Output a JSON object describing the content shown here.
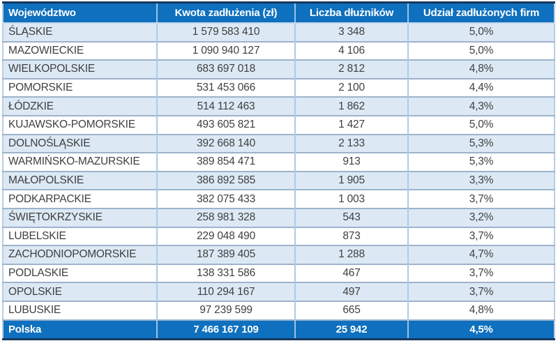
{
  "chart_data": {
    "type": "table",
    "columns": [
      "Województwo",
      "Kwota zadłużenia (zł)",
      "Liczba dłużników",
      "Udział zadłużonych firm"
    ],
    "rows": [
      [
        "ŚLĄSKIE",
        "1 579 583 410",
        "3 348",
        "5,0%"
      ],
      [
        "MAZOWIECKIE",
        "1 090 940 127",
        "4 106",
        "5,0%"
      ],
      [
        "WIELKOPOLSKIE",
        "683 697 018",
        "2 812",
        "4,8%"
      ],
      [
        "POMORSKIE",
        "531 453 066",
        "2 100",
        "4,4%"
      ],
      [
        "ŁÓDZKIE",
        "514 112 463",
        "1 862",
        "4,3%"
      ],
      [
        "KUJAWSKO-POMORSKIE",
        "493 605 821",
        "1 427",
        "5,0%"
      ],
      [
        "DOLNOŚLĄSKIE",
        "392 668 140",
        "2 133",
        "5,3%"
      ],
      [
        "WARMIŃSKO-MAZURSKIE",
        "389 854 471",
        "913",
        "5,3%"
      ],
      [
        "MAŁOPOLSKIE",
        "386 892 585",
        "1 905",
        "3,3%"
      ],
      [
        "PODKARPACKIE",
        "382 075 433",
        "1 003",
        "3,7%"
      ],
      [
        "ŚWIĘTOKRZYSKIE",
        "258 981 328",
        "543",
        "3,2%"
      ],
      [
        "LUBELSKIE",
        "229 048 490",
        "873",
        "3,7%"
      ],
      [
        "ZACHODNIOPOMORSKIE",
        "187 389 405",
        "1 288",
        "4,7%"
      ],
      [
        "PODLASKIE",
        "138 331 586",
        "467",
        "3,7%"
      ],
      [
        "OPOLSKIE",
        "110 294 167",
        "497",
        "3,7%"
      ],
      [
        "LUBUSKIE",
        "97 239 599",
        "665",
        "4,8%"
      ]
    ],
    "total_row": [
      "Polska",
      "7 466 167 109",
      "25 942",
      "4,5%"
    ]
  },
  "colors": {
    "header_bg": "#0E70BE",
    "total_row_bg": "#0E70BE",
    "alt_row_bg": "#DCE9F5",
    "row_bg": "#FFFFFF",
    "outer_border": "#17375E",
    "grid_horizontal": "#9DB3CB",
    "grid_vertical": "#AECBE4",
    "header_text": "#FFFFFF",
    "body_text": "#3F3F3F"
  }
}
